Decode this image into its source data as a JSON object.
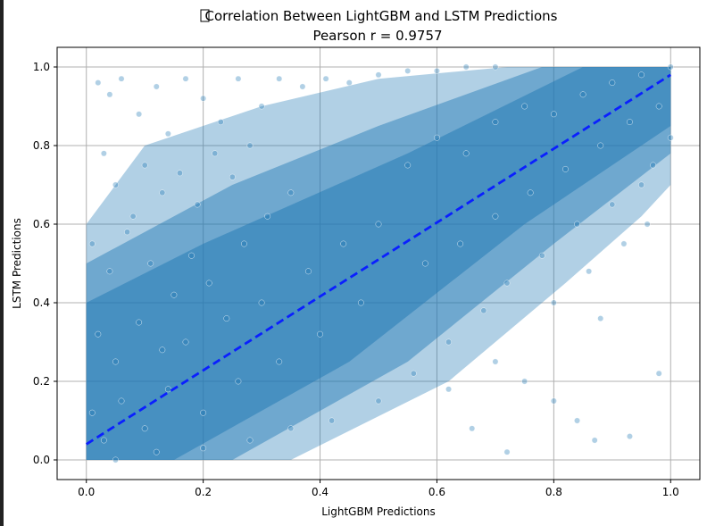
{
  "chart_data": {
    "type": "scatter",
    "title_icon": "chart-emoji-icon",
    "title_line1": "Correlation Between LightGBM and LSTM Predictions",
    "title_line2": "Pearson r = 0.9757",
    "xlabel": "LightGBM Predictions",
    "ylabel": "LSTM Predictions",
    "xlim": [
      -0.05,
      1.05
    ],
    "ylim": [
      -0.05,
      1.05
    ],
    "xticks": [
      0.0,
      0.2,
      0.4,
      0.6,
      0.8,
      1.0
    ],
    "yticks": [
      0.0,
      0.2,
      0.4,
      0.6,
      0.8,
      1.0
    ],
    "xtick_labels": [
      "0.0",
      "0.2",
      "0.4",
      "0.6",
      "0.8",
      "1.0"
    ],
    "ytick_labels": [
      "0.0",
      "0.2",
      "0.4",
      "0.6",
      "0.8",
      "1.0"
    ],
    "grid": true,
    "points": [
      [
        0.02,
        0.96
      ],
      [
        0.04,
        0.93
      ],
      [
        0.06,
        0.97
      ],
      [
        0.09,
        0.88
      ],
      [
        0.12,
        0.95
      ],
      [
        0.14,
        0.83
      ],
      [
        0.17,
        0.97
      ],
      [
        0.2,
        0.92
      ],
      [
        0.23,
        0.86
      ],
      [
        0.26,
        0.97
      ],
      [
        0.3,
        0.9
      ],
      [
        0.33,
        0.97
      ],
      [
        0.37,
        0.95
      ],
      [
        0.41,
        0.97
      ],
      [
        0.45,
        0.96
      ],
      [
        0.5,
        0.98
      ],
      [
        0.55,
        0.99
      ],
      [
        0.6,
        0.99
      ],
      [
        0.65,
        1.0
      ],
      [
        0.7,
        1.0
      ],
      [
        0.03,
        0.78
      ],
      [
        0.05,
        0.7
      ],
      [
        0.08,
        0.62
      ],
      [
        0.1,
        0.75
      ],
      [
        0.13,
        0.68
      ],
      [
        0.16,
        0.73
      ],
      [
        0.19,
        0.65
      ],
      [
        0.22,
        0.78
      ],
      [
        0.25,
        0.72
      ],
      [
        0.28,
        0.8
      ],
      [
        0.01,
        0.55
      ],
      [
        0.04,
        0.48
      ],
      [
        0.07,
        0.58
      ],
      [
        0.11,
        0.5
      ],
      [
        0.15,
        0.42
      ],
      [
        0.18,
        0.52
      ],
      [
        0.21,
        0.45
      ],
      [
        0.27,
        0.55
      ],
      [
        0.31,
        0.62
      ],
      [
        0.35,
        0.68
      ],
      [
        0.02,
        0.32
      ],
      [
        0.05,
        0.25
      ],
      [
        0.09,
        0.35
      ],
      [
        0.13,
        0.28
      ],
      [
        0.17,
        0.3
      ],
      [
        0.24,
        0.36
      ],
      [
        0.3,
        0.4
      ],
      [
        0.38,
        0.48
      ],
      [
        0.44,
        0.55
      ],
      [
        0.5,
        0.6
      ],
      [
        0.01,
        0.12
      ],
      [
        0.03,
        0.05
      ],
      [
        0.06,
        0.15
      ],
      [
        0.1,
        0.08
      ],
      [
        0.14,
        0.18
      ],
      [
        0.2,
        0.12
      ],
      [
        0.26,
        0.2
      ],
      [
        0.33,
        0.25
      ],
      [
        0.4,
        0.32
      ],
      [
        0.47,
        0.4
      ],
      [
        0.05,
        0.0
      ],
      [
        0.12,
        0.02
      ],
      [
        0.2,
        0.03
      ],
      [
        0.28,
        0.05
      ],
      [
        0.35,
        0.08
      ],
      [
        0.42,
        0.1
      ],
      [
        0.5,
        0.15
      ],
      [
        0.56,
        0.22
      ],
      [
        0.62,
        0.3
      ],
      [
        0.68,
        0.38
      ],
      [
        0.55,
        0.75
      ],
      [
        0.6,
        0.82
      ],
      [
        0.65,
        0.78
      ],
      [
        0.7,
        0.86
      ],
      [
        0.75,
        0.9
      ],
      [
        0.8,
        0.88
      ],
      [
        0.85,
        0.93
      ],
      [
        0.9,
        0.96
      ],
      [
        0.95,
        0.98
      ],
      [
        1.0,
        1.0
      ],
      [
        0.58,
        0.5
      ],
      [
        0.64,
        0.55
      ],
      [
        0.7,
        0.62
      ],
      [
        0.76,
        0.68
      ],
      [
        0.82,
        0.74
      ],
      [
        0.88,
        0.8
      ],
      [
        0.93,
        0.86
      ],
      [
        0.98,
        0.9
      ],
      [
        1.0,
        0.82
      ],
      [
        0.97,
        0.75
      ],
      [
        0.72,
        0.45
      ],
      [
        0.78,
        0.52
      ],
      [
        0.84,
        0.6
      ],
      [
        0.9,
        0.65
      ],
      [
        0.95,
        0.7
      ],
      [
        0.8,
        0.4
      ],
      [
        0.86,
        0.48
      ],
      [
        0.92,
        0.55
      ],
      [
        0.96,
        0.6
      ],
      [
        0.88,
        0.36
      ],
      [
        0.7,
        0.25
      ],
      [
        0.75,
        0.2
      ],
      [
        0.8,
        0.15
      ],
      [
        0.84,
        0.1
      ],
      [
        0.87,
        0.05
      ],
      [
        0.93,
        0.06
      ],
      [
        0.98,
        0.22
      ],
      [
        0.62,
        0.18
      ],
      [
        0.66,
        0.08
      ],
      [
        0.72,
        0.02
      ]
    ],
    "trend_line": {
      "x": [
        0.0,
        1.0
      ],
      "y": [
        0.04,
        0.98
      ],
      "style": "dashed"
    },
    "colors": {
      "point_fill": "#1f77b4",
      "point_stroke": "#ffffff",
      "cloud_fill": "#1f77b4",
      "trend": "#0a1fff",
      "grid": "#b0b0b0",
      "axis": "#000000"
    }
  }
}
